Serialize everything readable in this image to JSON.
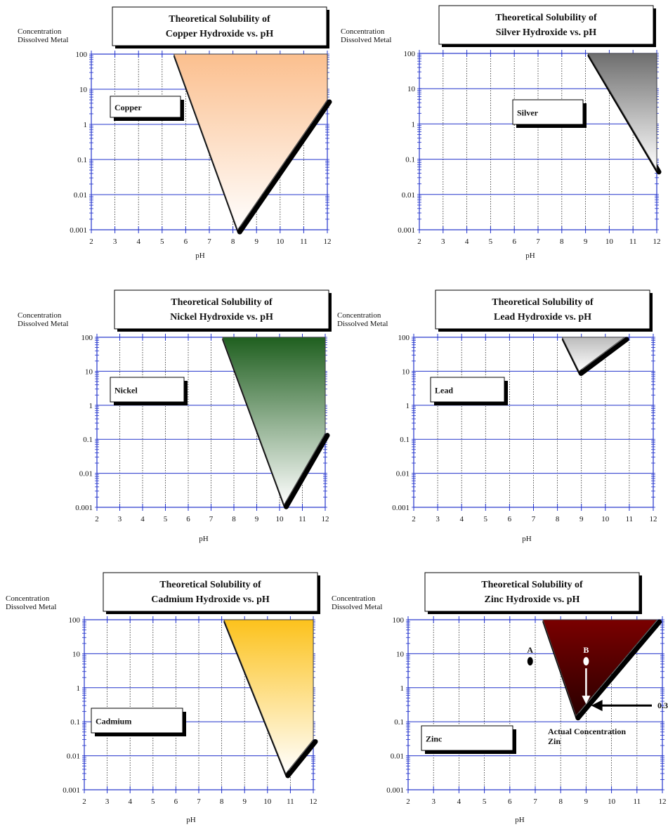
{
  "chart_data": [
    {
      "type": "area",
      "title": "Theoretical Solubility of",
      "subtitle": "Copper Hydroxide vs. pH",
      "ylabel": "Concentration",
      "ylabel2": "Dissolved Metal",
      "xlabel": "pH",
      "label": "Copper",
      "xlim": [
        2,
        12
      ],
      "ylim": [
        0.001,
        100
      ],
      "yscale": "log",
      "x_ticks": [
        "2",
        "3",
        "4",
        "5",
        "6",
        "7",
        "8",
        "9",
        "10",
        "11",
        "12"
      ],
      "y_ticks": [
        "0.001",
        "0.01",
        "0.1",
        "1",
        "10",
        "100"
      ],
      "region": [
        [
          5.5,
          100
        ],
        [
          12,
          100
        ],
        [
          12,
          5
        ],
        [
          8.2,
          0.001
        ]
      ],
      "fill_top": "#fbbf8e",
      "fill_bottom": "#ffffff"
    },
    {
      "type": "area",
      "title": "Theoretical Solubility of",
      "subtitle": "Silver Hydroxide vs. pH",
      "ylabel": "Concentration",
      "ylabel2": "Dissolved Metal",
      "xlabel": "pH",
      "label": "Silver",
      "xlim": [
        2,
        12
      ],
      "ylim": [
        0.001,
        100
      ],
      "yscale": "log",
      "x_ticks": [
        "2",
        "3",
        "4",
        "5",
        "6",
        "7",
        "8",
        "9",
        "10",
        "11",
        "12"
      ],
      "y_ticks": [
        "0.001",
        "0.01",
        "0.1",
        "1",
        "10",
        "100"
      ],
      "region": [
        [
          9.1,
          100
        ],
        [
          12,
          100
        ],
        [
          12,
          0.05
        ]
      ],
      "fill_top": "#6e6e6e",
      "fill_bottom": "#ffffff"
    },
    {
      "type": "area",
      "title": "Theoretical Solubility of",
      "subtitle": "Nickel Hydroxide vs. pH",
      "ylabel": "Concentration",
      "ylabel2": "Dissolved Metal",
      "xlabel": "pH",
      "label": "Nickel",
      "xlim": [
        2,
        12
      ],
      "ylim": [
        0.001,
        100
      ],
      "yscale": "log",
      "x_ticks": [
        "2",
        "3",
        "4",
        "5",
        "6",
        "7",
        "8",
        "9",
        "10",
        "11",
        "12"
      ],
      "y_ticks": [
        "0.001",
        "0.01",
        "0.1",
        "1",
        "10",
        "100"
      ],
      "region": [
        [
          7.5,
          100
        ],
        [
          12,
          100
        ],
        [
          12,
          0.15
        ],
        [
          10.2,
          0.0012
        ]
      ],
      "fill_top": "#1f5f1f",
      "fill_bottom": "#ffffff"
    },
    {
      "type": "area",
      "title": "Theoretical Solubility of",
      "subtitle": "Lead Hydroxide vs. pH",
      "ylabel": "Concentration",
      "ylabel2": "Dissolved Metal",
      "xlabel": "pH",
      "label": "Lead",
      "xlim": [
        2,
        12
      ],
      "ylim": [
        0.001,
        100
      ],
      "yscale": "log",
      "x_ticks": [
        "2",
        "3",
        "4",
        "5",
        "6",
        "7",
        "8",
        "9",
        "10",
        "11",
        "12"
      ],
      "y_ticks": [
        "0.001",
        "0.01",
        "0.1",
        "1",
        "10",
        "100"
      ],
      "region": [
        [
          8.2,
          100
        ],
        [
          10.8,
          100
        ],
        [
          8.9,
          10
        ]
      ],
      "fill_top": "#bbbbbb",
      "fill_bottom": "#ffffff"
    },
    {
      "type": "area",
      "title": "Theoretical Solubility of",
      "subtitle": "Cadmium Hydroxide vs. pH",
      "ylabel": "Concentration",
      "ylabel2": "Dissolved Metal",
      "xlabel": "pH",
      "label": "Cadmium",
      "xlim": [
        2,
        12
      ],
      "ylim": [
        0.001,
        100
      ],
      "yscale": "log",
      "x_ticks": [
        "2",
        "3",
        "4",
        "5",
        "6",
        "7",
        "8",
        "9",
        "10",
        "11",
        "12"
      ],
      "y_ticks": [
        "0.001",
        "0.01",
        "0.1",
        "1",
        "10",
        "100"
      ],
      "region": [
        [
          8.1,
          100
        ],
        [
          12,
          100
        ],
        [
          12,
          0.03
        ],
        [
          10.8,
          0.003
        ]
      ],
      "fill_top": "#fcc21c",
      "fill_bottom": "#ffffff"
    },
    {
      "type": "area",
      "title": "Theoretical Solubility of",
      "subtitle": "Zinc Hydroxide vs. pH",
      "ylabel": "Concentration",
      "ylabel2": "Dissolved Metal",
      "xlabel": "pH",
      "label": "Zinc",
      "xlim": [
        2,
        12
      ],
      "ylim": [
        0.001,
        100
      ],
      "yscale": "log",
      "x_ticks": [
        "2",
        "3",
        "4",
        "5",
        "6",
        "7",
        "8",
        "9",
        "10",
        "11",
        "12"
      ],
      "y_ticks": [
        "0.001",
        "0.01",
        "0.1",
        "1",
        "10",
        "100"
      ],
      "region": [
        [
          7.3,
          100
        ],
        [
          11.8,
          100
        ],
        [
          8.6,
          0.15
        ]
      ],
      "fill_top": "#7a0000",
      "fill_bottom": "#2a0000",
      "points": [
        {
          "name": "A",
          "x": 6.8,
          "y": 6
        },
        {
          "name": "B",
          "x": 9.0,
          "y": 6
        }
      ],
      "annotation_text": "Actual Concentration",
      "annotation_text2": "Zin",
      "arrow_label": "0.3"
    }
  ]
}
